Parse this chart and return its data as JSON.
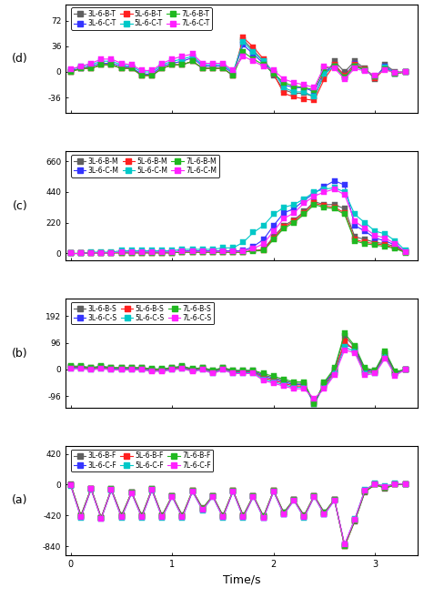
{
  "time": [
    0.0,
    0.1,
    0.2,
    0.3,
    0.4,
    0.5,
    0.6,
    0.7,
    0.8,
    0.9,
    1.0,
    1.1,
    1.2,
    1.3,
    1.4,
    1.5,
    1.6,
    1.7,
    1.8,
    1.9,
    2.0,
    2.1,
    2.2,
    2.3,
    2.4,
    2.5,
    2.6,
    2.7,
    2.8,
    2.9,
    3.0,
    3.1,
    3.2,
    3.3
  ],
  "colors": {
    "3L-6-B": "#606060",
    "3L-6-C": "#3535ff",
    "5L-6-B": "#ff2020",
    "5L-6-C": "#00c8c8",
    "7L-6-B": "#20b820",
    "7L-6-C": "#ff20ff"
  },
  "panel_yticks": {
    "a": [
      -840,
      -420,
      0,
      420
    ],
    "b": [
      -96,
      0,
      96,
      192
    ],
    "c": [
      0,
      220,
      440,
      660
    ],
    "d": [
      -36,
      0,
      36,
      72
    ]
  },
  "panel_ylim": {
    "a": [
      -960,
      530
    ],
    "b": [
      -138,
      255
    ],
    "c": [
      -50,
      730
    ],
    "d": [
      -58,
      95
    ]
  },
  "data_a": {
    "3L-6-B-F": [
      0,
      -420,
      -50,
      -450,
      -60,
      -420,
      -100,
      -420,
      -60,
      -420,
      -150,
      -420,
      -80,
      -320,
      -150,
      -420,
      -80,
      -420,
      -150,
      -430,
      -80,
      -380,
      -200,
      -420,
      -150,
      -380,
      -200,
      -840,
      -500,
      -100,
      0,
      -50,
      0,
      0
    ],
    "3L-6-C-F": [
      -10,
      -440,
      -60,
      -460,
      -70,
      -440,
      -110,
      -440,
      -70,
      -440,
      -160,
      -440,
      -90,
      -340,
      -160,
      -440,
      -90,
      -440,
      -160,
      -450,
      -90,
      -400,
      -210,
      -440,
      -160,
      -400,
      -210,
      -820,
      -480,
      -80,
      10,
      -30,
      10,
      5
    ],
    "5L-6-B-F": [
      -5,
      -430,
      -55,
      -455,
      -65,
      -430,
      -105,
      -430,
      -65,
      -430,
      -155,
      -430,
      -85,
      -330,
      -155,
      -430,
      -85,
      -430,
      -155,
      -440,
      -85,
      -390,
      -205,
      -430,
      -155,
      -390,
      -205,
      -845,
      -490,
      -90,
      5,
      -40,
      5,
      2
    ],
    "5L-6-C-F": [
      -15,
      -450,
      -65,
      -465,
      -75,
      -450,
      -115,
      -450,
      -75,
      -450,
      -165,
      -450,
      -95,
      -350,
      -165,
      -450,
      -95,
      -450,
      -165,
      -460,
      -95,
      -410,
      -215,
      -450,
      -165,
      -410,
      -215,
      -825,
      -470,
      -70,
      15,
      -20,
      15,
      8
    ],
    "7L-6-B-F": [
      -2,
      -425,
      -52,
      -452,
      -62,
      -425,
      -102,
      -425,
      -62,
      -425,
      -152,
      -425,
      -82,
      -325,
      -152,
      -425,
      -82,
      -425,
      -152,
      -435,
      -82,
      -385,
      -202,
      -425,
      -152,
      -385,
      -202,
      -835,
      -495,
      -95,
      2,
      -45,
      2,
      1
    ],
    "7L-6-C-F": [
      -12,
      -445,
      -62,
      -462,
      -72,
      -445,
      -112,
      -445,
      -72,
      -445,
      -162,
      -445,
      -92,
      -345,
      -162,
      -445,
      -92,
      -445,
      -162,
      -455,
      -92,
      -405,
      -212,
      -445,
      -162,
      -405,
      -212,
      -815,
      -475,
      -75,
      12,
      -25,
      12,
      6
    ]
  },
  "data_b": {
    "3L-6-B-S": [
      10,
      10,
      5,
      10,
      5,
      5,
      5,
      5,
      0,
      0,
      5,
      10,
      0,
      5,
      -5,
      5,
      -5,
      -5,
      -5,
      -20,
      -30,
      -40,
      -50,
      -50,
      -120,
      -50,
      0,
      120,
      80,
      0,
      -5,
      60,
      -10,
      0
    ],
    "3L-6-C-S": [
      8,
      8,
      3,
      8,
      3,
      3,
      3,
      3,
      -2,
      -2,
      3,
      8,
      -2,
      3,
      -8,
      3,
      -8,
      -8,
      -8,
      -25,
      -35,
      -45,
      -55,
      -55,
      -125,
      -55,
      -5,
      90,
      75,
      -5,
      -8,
      55,
      -12,
      0
    ],
    "5L-6-B-S": [
      6,
      6,
      2,
      6,
      2,
      2,
      2,
      2,
      -3,
      -3,
      2,
      6,
      -3,
      2,
      -10,
      2,
      -10,
      -10,
      -10,
      -30,
      -40,
      -50,
      -60,
      -60,
      -115,
      -60,
      -10,
      100,
      70,
      -10,
      -10,
      50,
      -15,
      0
    ],
    "5L-6-C-S": [
      4,
      4,
      0,
      4,
      0,
      0,
      0,
      0,
      -5,
      -5,
      0,
      4,
      -5,
      0,
      -12,
      0,
      -12,
      -12,
      -12,
      -35,
      -45,
      -55,
      -65,
      -65,
      -110,
      -65,
      -15,
      80,
      65,
      -15,
      -12,
      45,
      -18,
      0
    ],
    "7L-6-B-S": [
      12,
      12,
      7,
      12,
      7,
      7,
      7,
      7,
      2,
      2,
      7,
      12,
      2,
      7,
      -3,
      7,
      -3,
      -3,
      -3,
      -15,
      -25,
      -35,
      -45,
      -45,
      -125,
      -45,
      5,
      130,
      85,
      5,
      -3,
      65,
      -8,
      0
    ],
    "7L-6-C-S": [
      2,
      2,
      -2,
      2,
      -2,
      -2,
      -2,
      -2,
      -7,
      -7,
      -2,
      2,
      -7,
      -2,
      -15,
      -2,
      -15,
      -15,
      -15,
      -40,
      -50,
      -60,
      -70,
      -70,
      -105,
      -70,
      -20,
      70,
      60,
      -20,
      -15,
      40,
      -22,
      0
    ]
  },
  "data_c": {
    "3L-6-B-M": [
      0,
      0,
      5,
      5,
      5,
      5,
      5,
      5,
      5,
      5,
      5,
      10,
      10,
      10,
      10,
      10,
      10,
      10,
      20,
      30,
      120,
      200,
      240,
      300,
      370,
      350,
      350,
      320,
      120,
      100,
      80,
      70,
      50,
      10
    ],
    "3L-6-C-M": [
      0,
      0,
      5,
      5,
      5,
      10,
      10,
      10,
      10,
      10,
      10,
      20,
      20,
      20,
      20,
      20,
      20,
      20,
      50,
      100,
      200,
      290,
      320,
      380,
      430,
      480,
      520,
      490,
      200,
      160,
      110,
      90,
      60,
      15
    ],
    "5L-6-B-M": [
      0,
      0,
      5,
      5,
      5,
      5,
      5,
      5,
      5,
      5,
      5,
      10,
      10,
      10,
      10,
      10,
      10,
      10,
      20,
      25,
      110,
      190,
      230,
      290,
      360,
      340,
      330,
      290,
      100,
      80,
      70,
      60,
      40,
      8
    ],
    "5L-6-C-M": [
      0,
      0,
      10,
      10,
      10,
      20,
      20,
      20,
      20,
      20,
      20,
      30,
      30,
      30,
      30,
      40,
      40,
      80,
      150,
      200,
      280,
      330,
      350,
      390,
      440,
      460,
      470,
      440,
      280,
      220,
      160,
      140,
      90,
      20
    ],
    "7L-6-B-M": [
      0,
      0,
      5,
      5,
      5,
      5,
      5,
      5,
      5,
      5,
      5,
      10,
      10,
      10,
      10,
      10,
      10,
      10,
      18,
      20,
      100,
      180,
      220,
      280,
      350,
      330,
      320,
      280,
      90,
      70,
      60,
      50,
      35,
      6
    ],
    "7L-6-C-M": [
      0,
      0,
      5,
      5,
      5,
      10,
      10,
      10,
      10,
      10,
      10,
      15,
      15,
      15,
      15,
      15,
      15,
      15,
      35,
      70,
      160,
      250,
      290,
      360,
      410,
      440,
      460,
      420,
      230,
      180,
      130,
      110,
      70,
      12
    ]
  },
  "data_d": {
    "3L-6-B-T": [
      0,
      5,
      5,
      10,
      10,
      5,
      5,
      -5,
      -5,
      5,
      10,
      10,
      15,
      5,
      5,
      5,
      -5,
      45,
      30,
      15,
      -5,
      -25,
      -30,
      -30,
      -35,
      -5,
      15,
      0,
      15,
      5,
      -10,
      10,
      0,
      0
    ],
    "3L-6-C-T": [
      2,
      5,
      8,
      12,
      12,
      8,
      6,
      -3,
      -3,
      8,
      12,
      15,
      20,
      8,
      8,
      8,
      -2,
      38,
      25,
      12,
      -2,
      -18,
      -22,
      -22,
      -28,
      0,
      10,
      -5,
      12,
      3,
      -8,
      8,
      -2,
      0
    ],
    "5L-6-B-T": [
      0,
      5,
      5,
      10,
      10,
      5,
      5,
      -5,
      -5,
      5,
      10,
      10,
      15,
      5,
      5,
      5,
      -5,
      48,
      35,
      18,
      -3,
      -30,
      -35,
      -38,
      -40,
      -10,
      10,
      -5,
      10,
      4,
      -9,
      5,
      -3,
      0
    ],
    "5L-6-C-T": [
      3,
      8,
      10,
      15,
      15,
      10,
      8,
      0,
      0,
      10,
      15,
      18,
      22,
      10,
      10,
      10,
      0,
      42,
      28,
      15,
      0,
      -22,
      -28,
      -28,
      -35,
      -3,
      8,
      -8,
      8,
      2,
      -7,
      6,
      -2,
      0
    ],
    "7L-6-B-T": [
      0,
      5,
      5,
      10,
      10,
      5,
      5,
      -5,
      -5,
      5,
      10,
      10,
      15,
      5,
      5,
      5,
      -5,
      28,
      18,
      10,
      -2,
      -15,
      -20,
      -22,
      -25,
      5,
      8,
      -8,
      8,
      3,
      -6,
      4,
      -2,
      0
    ],
    "7L-6-C-T": [
      4,
      8,
      12,
      18,
      18,
      12,
      10,
      2,
      2,
      12,
      18,
      22,
      25,
      12,
      12,
      12,
      2,
      22,
      15,
      8,
      2,
      -10,
      -15,
      -18,
      -22,
      8,
      5,
      -10,
      5,
      1,
      -5,
      3,
      -1,
      0
    ]
  }
}
